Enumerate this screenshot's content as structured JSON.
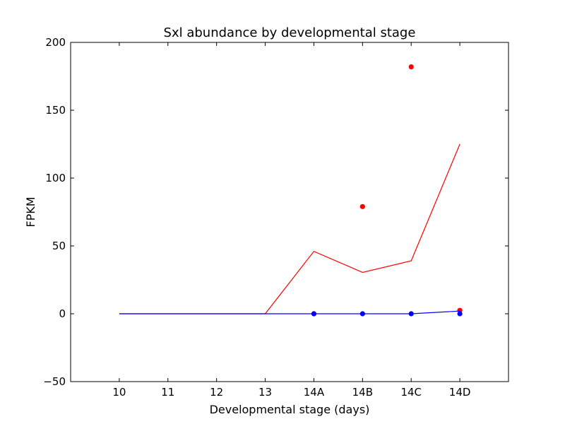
{
  "chart_data": {
    "type": "line",
    "title": "Sxl abundance by developmental stage",
    "xlabel": "Developmental stage (days)",
    "ylabel": "FPKM",
    "categories": [
      "10",
      "11",
      "12",
      "13",
      "14A",
      "14B",
      "14C",
      "14D"
    ],
    "xlim": [
      -1,
      8
    ],
    "ylim": [
      -50,
      200
    ],
    "yticks": [
      -50,
      0,
      50,
      100,
      150,
      200
    ],
    "ytick_labels": [
      "−50",
      "0",
      "50",
      "100",
      "150",
      "200"
    ],
    "grid": false,
    "series": [
      {
        "color": "#ff0000",
        "line_values": [
          0,
          0,
          0,
          0,
          46,
          30.5,
          39,
          125
        ],
        "points": [
          {
            "x": "14A",
            "y": 0
          },
          {
            "x": "14B",
            "y": 79
          },
          {
            "x": "14C",
            "y": 182
          },
          {
            "x": "14D",
            "y": 2.5
          }
        ]
      },
      {
        "color": "#0000ff",
        "line_values": [
          0,
          0,
          0,
          0,
          0,
          0,
          0,
          2
        ],
        "points": [
          {
            "x": "14A",
            "y": 0
          },
          {
            "x": "14B",
            "y": 0
          },
          {
            "x": "14C",
            "y": 0
          },
          {
            "x": "14D",
            "y": 0
          }
        ]
      }
    ]
  }
}
